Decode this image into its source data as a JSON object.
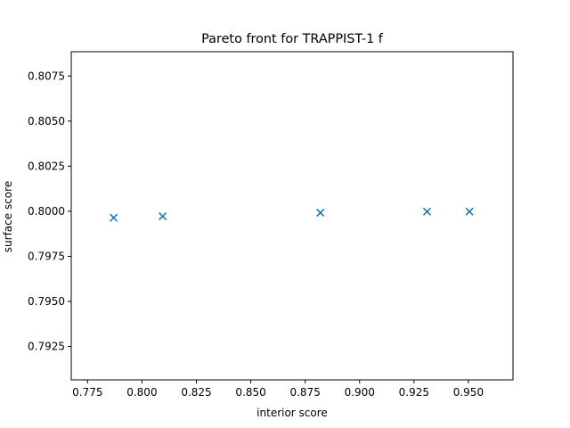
{
  "chart_data": {
    "type": "scatter",
    "title": "Pareto front for TRAPPIST-1 f",
    "xlabel": "interior score",
    "ylabel": "surface score",
    "xlim": [
      0.7675,
      0.9705
    ],
    "ylim": [
      0.79065,
      0.80885
    ],
    "x_ticks": [
      0.775,
      0.8,
      0.825,
      0.85,
      0.875,
      0.9,
      0.925,
      0.95
    ],
    "x_tick_labels": [
      "0.775",
      "0.800",
      "0.825",
      "0.850",
      "0.875",
      "0.900",
      "0.925",
      "0.950"
    ],
    "y_ticks": [
      0.7925,
      0.795,
      0.7975,
      0.8,
      0.8025,
      0.805,
      0.8075
    ],
    "y_tick_labels": [
      "0.7925",
      "0.7950",
      "0.7975",
      "0.8000",
      "0.8025",
      "0.8050",
      "0.8075"
    ],
    "grid": false,
    "marker": "x",
    "marker_color": "#1f77b4",
    "series": [
      {
        "x": [
          0.787,
          0.8095,
          0.882,
          0.931,
          0.9505
        ],
        "y": [
          0.79964,
          0.79972,
          0.79992,
          0.79998,
          0.79998
        ]
      }
    ]
  }
}
